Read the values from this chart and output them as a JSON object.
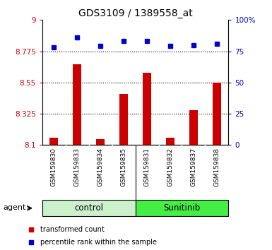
{
  "title": "GDS3109 / 1389558_at",
  "samples": [
    "GSM159830",
    "GSM159833",
    "GSM159834",
    "GSM159835",
    "GSM159831",
    "GSM159832",
    "GSM159837",
    "GSM159838"
  ],
  "transformed_counts": [
    8.15,
    8.68,
    8.14,
    8.47,
    8.62,
    8.15,
    8.35,
    8.55
  ],
  "percentile_ranks": [
    78,
    86,
    79,
    83,
    83,
    79,
    80,
    81
  ],
  "groups": [
    "control",
    "control",
    "control",
    "control",
    "Sunitinib",
    "Sunitinib",
    "Sunitinib",
    "Sunitinib"
  ],
  "group_labels": [
    "control",
    "Sunitinib"
  ],
  "ctrl_color": "#ccf0cc",
  "sun_color": "#44ee44",
  "bar_color": "#cc0000",
  "dot_color": "#0000cc",
  "ylim_left": [
    8.1,
    9.0
  ],
  "ylim_right": [
    0,
    100
  ],
  "yticks_left": [
    8.1,
    8.325,
    8.55,
    8.775,
    9.0
  ],
  "ytick_labels_left": [
    "8.1",
    "8.325",
    "8.55",
    "8.775",
    "9"
  ],
  "yticks_right": [
    0,
    25,
    50,
    75,
    100
  ],
  "ytick_labels_right": [
    "0",
    "25",
    "50",
    "75",
    "100%"
  ],
  "hlines": [
    8.325,
    8.55,
    8.775
  ],
  "agent_label": "agent",
  "legend_red": "transformed count",
  "legend_blue": "percentile rank within the sample",
  "tick_bg_color": "#cccccc",
  "plot_bg": "#ffffff"
}
